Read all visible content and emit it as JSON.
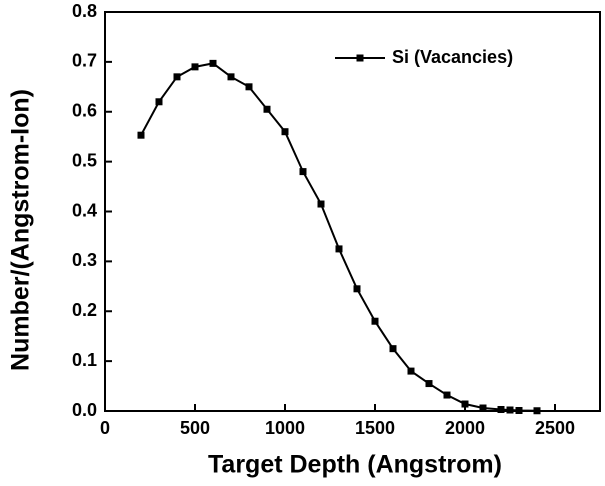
{
  "chart_data": {
    "type": "line",
    "x_label": "Target Depth (Angstrom)",
    "y_label": "Number/(Angstrom-Ion)",
    "x": [
      200,
      300,
      400,
      500,
      600,
      700,
      800,
      900,
      1000,
      1100,
      1200,
      1300,
      1400,
      1500,
      1600,
      1700,
      1800,
      1900,
      2000,
      2100,
      2200,
      2250,
      2300,
      2400
    ],
    "series": [
      {
        "name": "Si (Vacancies)",
        "color": "#000000",
        "values": [
          0.553,
          0.62,
          0.67,
          0.69,
          0.697,
          0.67,
          0.65,
          0.605,
          0.56,
          0.48,
          0.415,
          0.325,
          0.245,
          0.18,
          0.125,
          0.08,
          0.055,
          0.032,
          0.014,
          0.006,
          0.003,
          0.002,
          0.001,
          0.0005
        ]
      }
    ],
    "xlim": [
      0,
      2750
    ],
    "xticks": [
      0,
      500,
      1000,
      1500,
      2000,
      2500
    ],
    "ylim": [
      0,
      0.8
    ],
    "yticks": [
      {
        "value": 0,
        "label": "0.0"
      },
      {
        "value": 0.1,
        "label": "0.1"
      },
      {
        "value": 0.2,
        "label": "0.2"
      },
      {
        "value": 0.3,
        "label": "0.3"
      },
      {
        "value": 0.4,
        "label": "0.4"
      },
      {
        "value": 0.5,
        "label": "0.5"
      },
      {
        "value": 0.6,
        "label": "0.6"
      },
      {
        "value": 0.7,
        "label": "0.7"
      },
      {
        "value": 0.8,
        "label": "0.8"
      }
    ],
    "legend": "top-right"
  }
}
